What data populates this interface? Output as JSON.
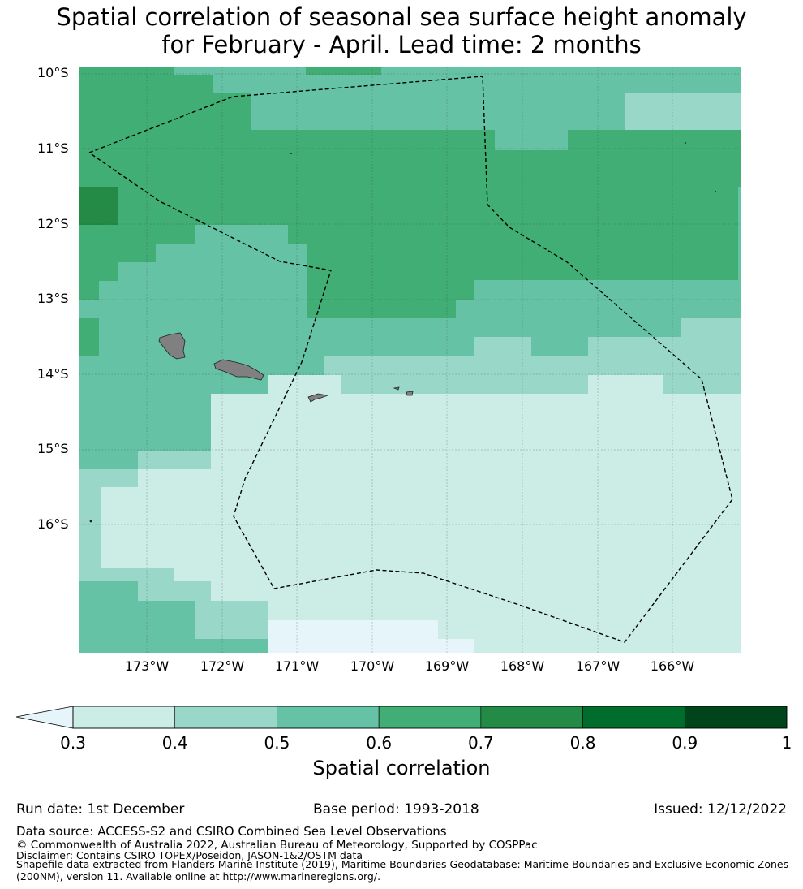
{
  "title_line1": "Spatial correlation of seasonal sea surface height anomaly",
  "title_line2": "for February - April. Lead time: 2 months",
  "map": {
    "lat_labels": [
      "10°S",
      "11°S",
      "12°S",
      "13°S",
      "14°S",
      "15°S",
      "16°S"
    ],
    "lon_labels": [
      "173°W",
      "172°W",
      "171°W",
      "170°W",
      "169°W",
      "168°W",
      "167°W",
      "166°W"
    ]
  },
  "colorbar": {
    "ticks": [
      "0.3",
      "0.4",
      "0.5",
      "0.6",
      "0.7",
      "0.8",
      "0.9",
      "1"
    ],
    "colors": [
      "#ccece6",
      "#99d8c9",
      "#66c2a4",
      "#41ae76",
      "#238b45",
      "#006d2c",
      "#00441b"
    ],
    "under_color": "#e5f5f9",
    "label": "Spatial correlation"
  },
  "footer": {
    "run_date": "Run date: 1st December",
    "base_period": "Base period: 1993-2018",
    "issued": "Issued: 12/12/2022",
    "data_source": "Data source: ACCESS-S2 and CSIRO Combined Sea Level Observations",
    "copyright": "© Commonwealth of Australia 2022, Australian Bureau of Meteorology, Supported by COSPPac",
    "disclaimer": "Disclaimer: Contains CSIRO TOPEX/Poseidon, JASON-1&2/OSTM data",
    "shapefile_1": "Shapefile data extracted from Flanders Marine Institute (2019), Maritime Boundaries Geodatabase: Maritime Boundaries and Exclusive Economic Zones",
    "shapefile_2": "(200NM), version 11. Available online at http://www.marineregions.org/."
  }
}
